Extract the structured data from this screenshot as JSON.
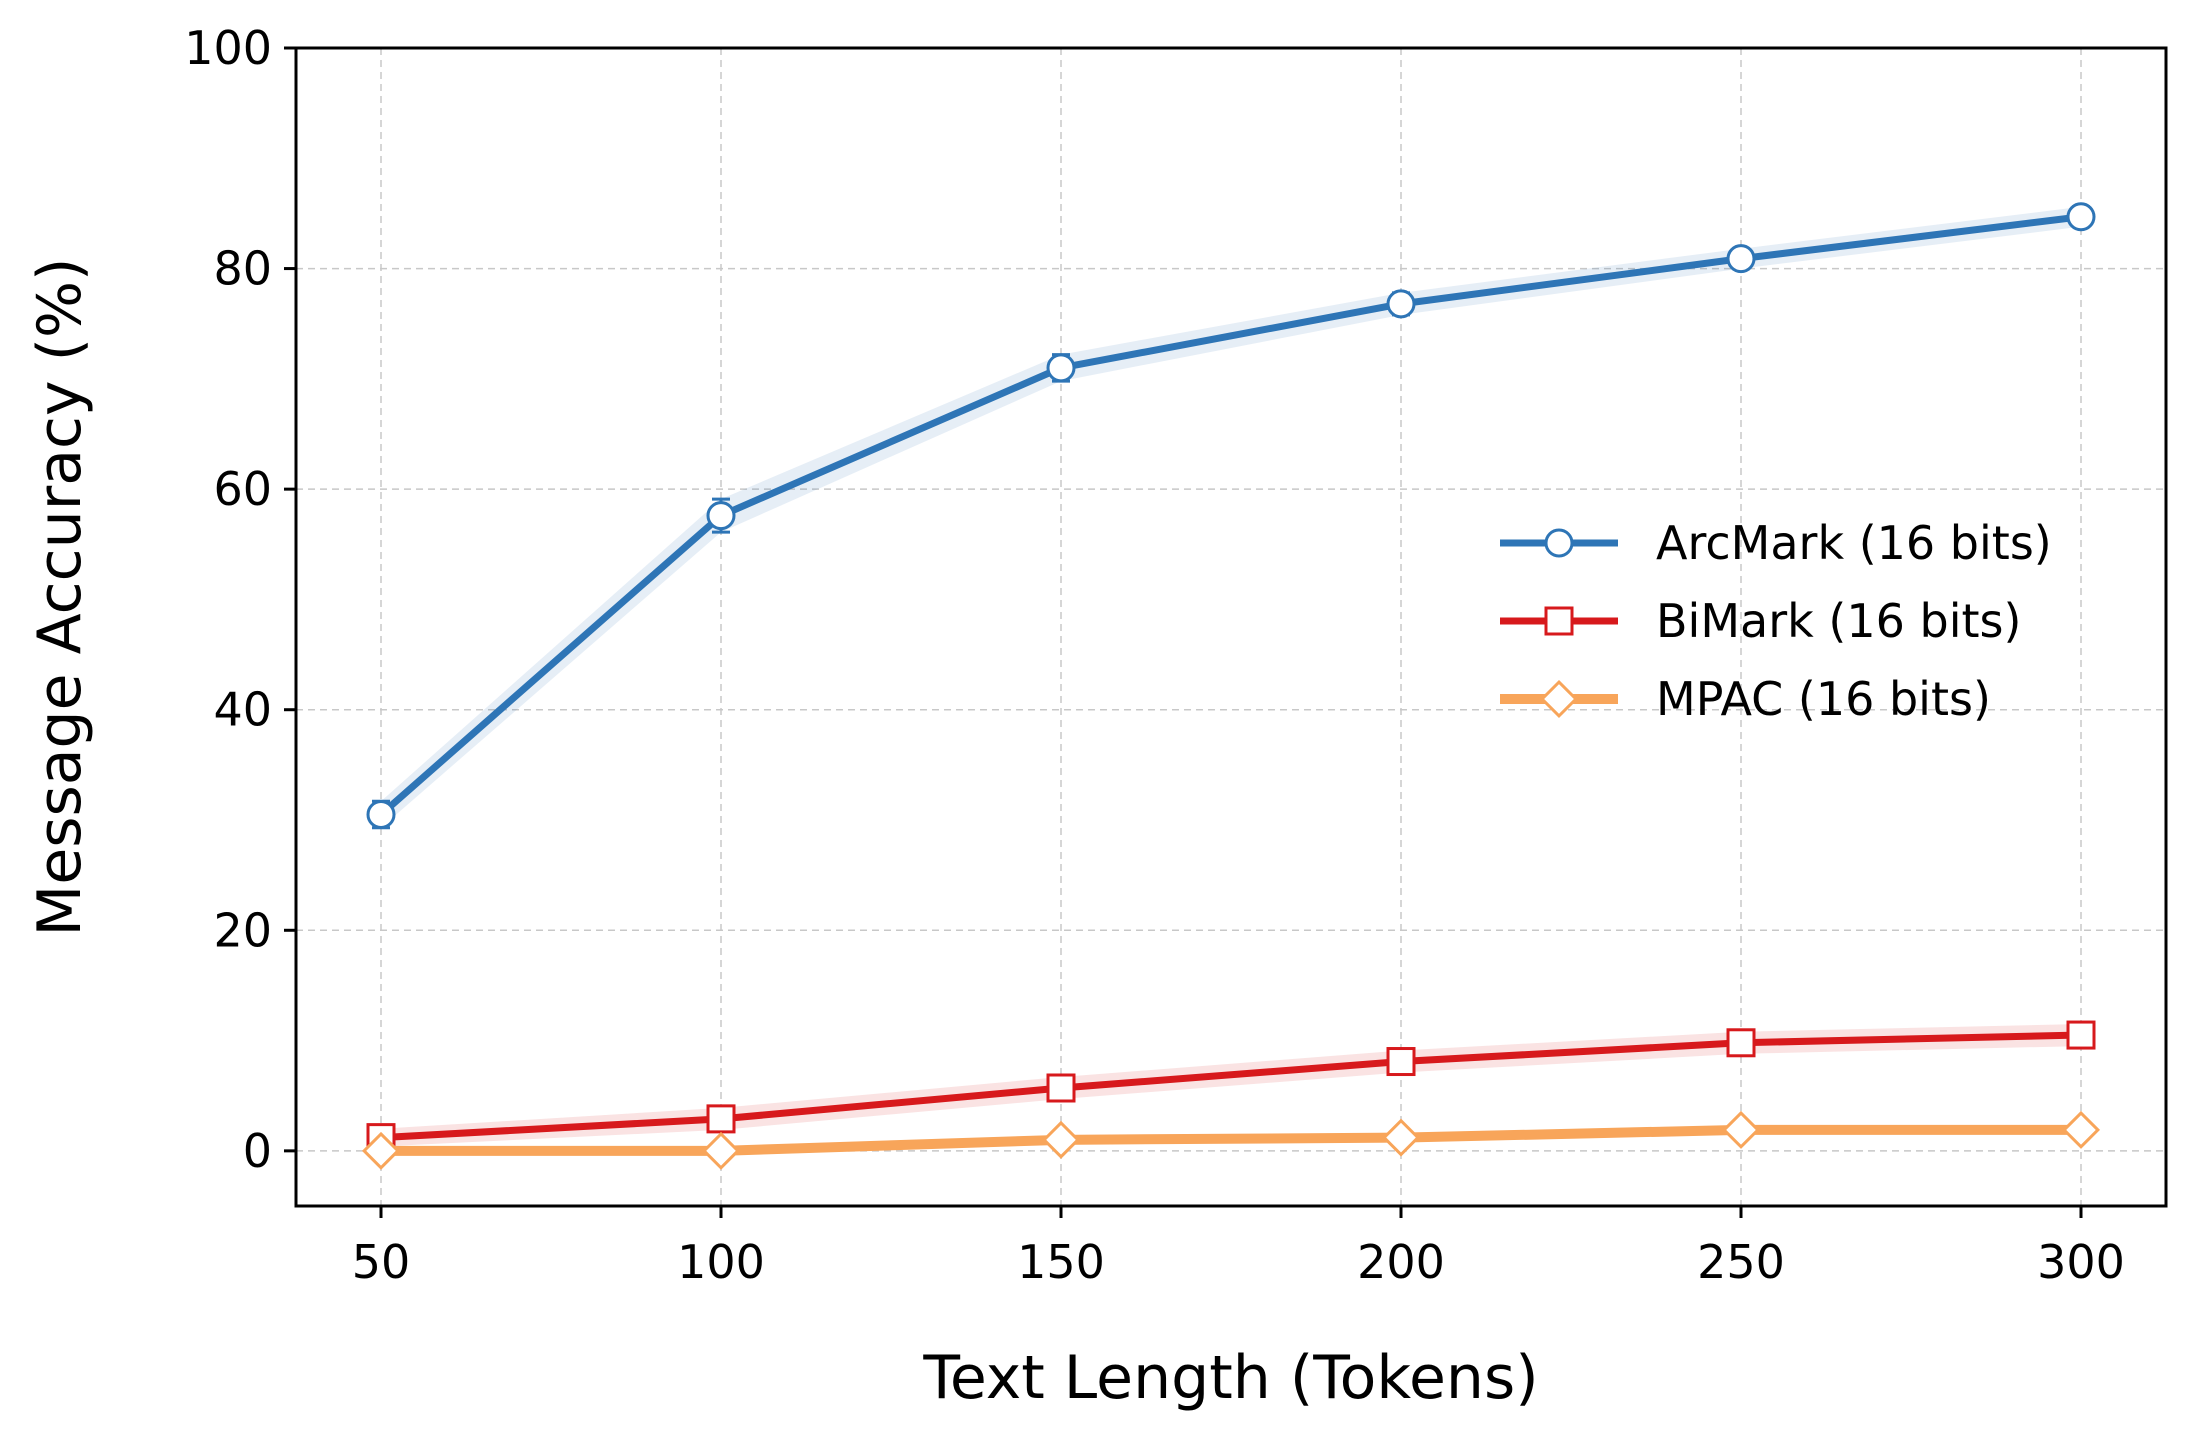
{
  "chart_data": {
    "type": "line",
    "xlabel": "Text Length (Tokens)",
    "ylabel": "Message Accuracy (%)",
    "x": [
      50,
      100,
      150,
      200,
      250,
      300
    ],
    "xticks": [
      50,
      100,
      150,
      200,
      250,
      300
    ],
    "yticks": [
      0,
      20,
      40,
      60,
      80,
      100
    ],
    "xlim": [
      37.5,
      312.5
    ],
    "ylim": [
      -5,
      100
    ],
    "grid": true,
    "legend_position": "center-right",
    "series": [
      {
        "name": "ArcMark (16 bits)",
        "values": [
          30.5,
          57.6,
          71.0,
          76.8,
          80.9,
          84.7
        ],
        "error": [
          1.2,
          1.5,
          1.2,
          1.0,
          0.9,
          0.9
        ],
        "color": "#2e75b6",
        "marker": "circle"
      },
      {
        "name": "BiMark (16 bits)",
        "values": [
          1.2,
          2.9,
          5.7,
          8.1,
          9.8,
          10.5
        ],
        "error": [
          0.8,
          1.0,
          1.0,
          1.0,
          1.0,
          1.0
        ],
        "color": "#d7191c",
        "marker": "square"
      },
      {
        "name": "MPAC (16 bits)",
        "values": [
          0.0,
          0.0,
          1.0,
          1.2,
          1.9,
          1.9
        ],
        "error": [
          0.3,
          0.3,
          0.4,
          0.4,
          0.4,
          0.4
        ],
        "color": "#f8a55a",
        "marker": "diamond"
      }
    ]
  }
}
